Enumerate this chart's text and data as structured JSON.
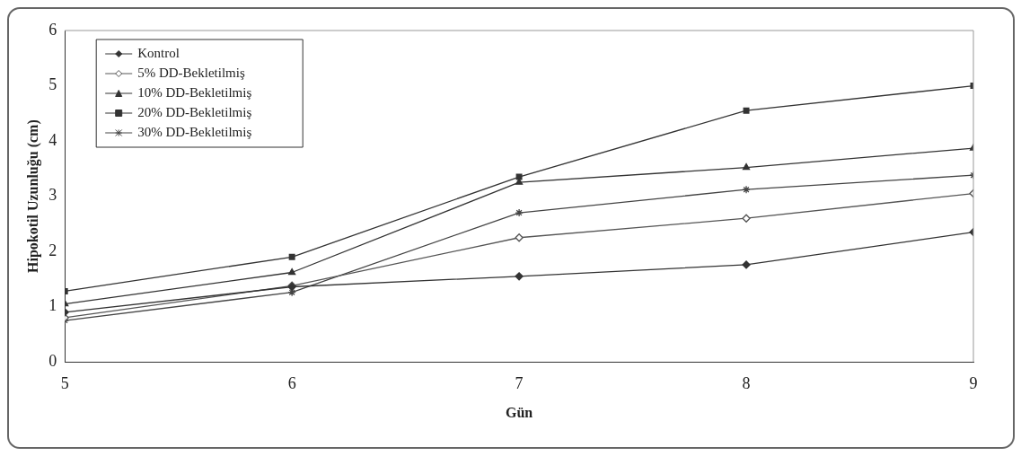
{
  "chart_data": {
    "type": "line",
    "xlabel": "Gün",
    "ylabel": "Hipokotil Uzunluğu (cm)",
    "x": [
      5,
      6,
      7,
      8,
      9
    ],
    "xlim": [
      5,
      9
    ],
    "xticks": [
      5,
      6,
      7,
      8,
      9
    ],
    "ylim": [
      0,
      6
    ],
    "yticks": [
      0,
      1,
      2,
      3,
      4,
      5,
      6
    ],
    "grid": false,
    "legend": "top left",
    "line_style": "solid",
    "series": [
      {
        "name": "Kontrol",
        "color": "#333333",
        "marker": "diamond",
        "values": [
          0.9,
          1.36,
          1.55,
          1.76,
          2.35
        ]
      },
      {
        "name": "5% DD-Bekletilmiş",
        "color": "#555555",
        "marker": "diamond",
        "values": [
          0.8,
          1.38,
          2.25,
          2.6,
          3.05
        ]
      },
      {
        "name": "10% DD-Bekletilmiş",
        "color": "#333333",
        "marker": "triangle",
        "values": [
          1.05,
          1.62,
          3.25,
          3.52,
          3.87
        ]
      },
      {
        "name": "20% DD-Bekletilmiş",
        "color": "#333333",
        "marker": "square",
        "values": [
          1.28,
          1.9,
          3.35,
          4.55,
          5.0
        ]
      },
      {
        "name": "30% DD-Bekletilmiş",
        "color": "#444444",
        "marker": "cross",
        "values": [
          0.75,
          1.26,
          2.7,
          3.12,
          3.38
        ]
      }
    ]
  }
}
